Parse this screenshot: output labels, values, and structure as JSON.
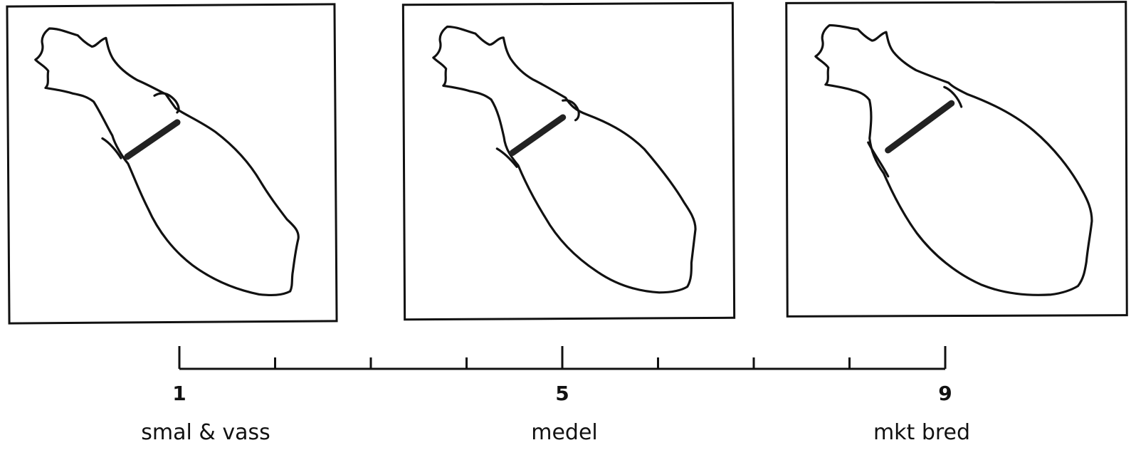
{
  "scale": {
    "min": 1,
    "max": 9,
    "labels": [
      {
        "value": 1,
        "text": "1"
      },
      {
        "value": 5,
        "text": "5"
      },
      {
        "value": 9,
        "text": "9"
      }
    ]
  },
  "panels": [
    {
      "score": 1,
      "caption": "smal & vass",
      "relative_width": 0.55
    },
    {
      "score": 5,
      "caption": "medel",
      "relative_width": 0.78
    },
    {
      "score": 9,
      "caption": "mkt bred",
      "relative_width": 1.0
    }
  ]
}
